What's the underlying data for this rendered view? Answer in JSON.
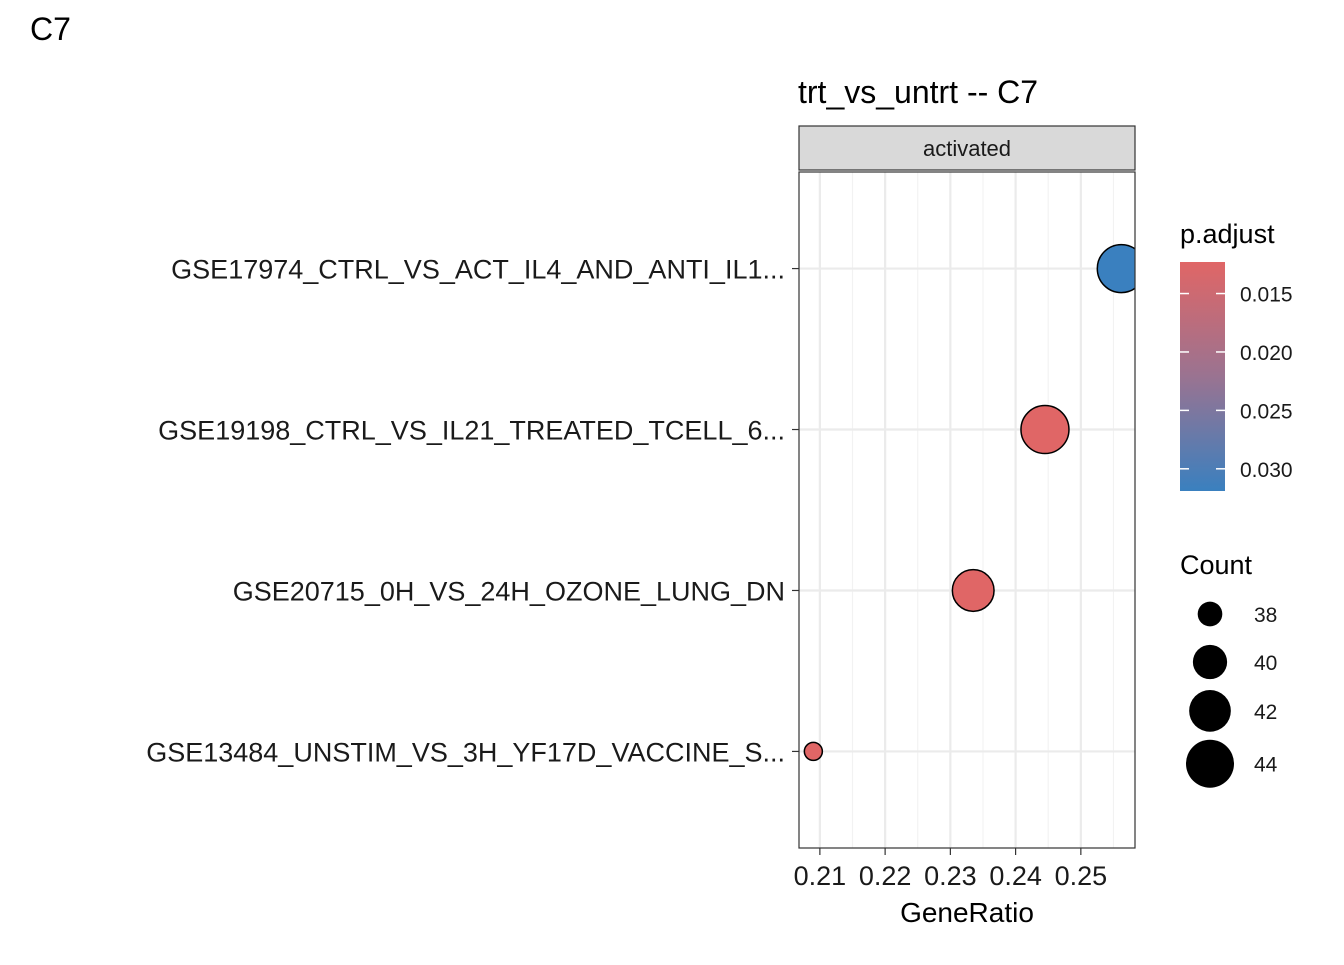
{
  "tag": "C7",
  "chart_data": {
    "type": "scatter",
    "title": "trt_vs_untrt -- C7",
    "facet": "activated",
    "xlabel": "GeneRatio",
    "ylabel": "",
    "xlim": [
      0.2068,
      0.2583
    ],
    "x_ticks": [
      {
        "value": 0.21,
        "label": "0.21"
      },
      {
        "value": 0.22,
        "label": "0.22"
      },
      {
        "value": 0.23,
        "label": "0.23"
      },
      {
        "value": 0.24,
        "label": "0.24"
      },
      {
        "value": 0.25,
        "label": "0.25"
      }
    ],
    "grid": true,
    "points": [
      {
        "label": "GSE17974_CTRL_VS_ACT_IL4_AND_ANTI_IL1...",
        "gene_ratio": 0.2562,
        "count": 44,
        "p_adjust": 0.0319
      },
      {
        "label": "GSE19198_CTRL_VS_IL21_TREATED_TCELL_6...",
        "gene_ratio": 0.2445,
        "count": 44,
        "p_adjust": 0.0123
      },
      {
        "label": "GSE20715_0H_VS_24H_OZONE_LUNG_DN",
        "gene_ratio": 0.2335,
        "count": 42,
        "p_adjust": 0.0123
      },
      {
        "label": "GSE13484_UNSTIM_VS_3H_YF17D_VACCINE_S...",
        "gene_ratio": 0.209,
        "count": 37,
        "p_adjust": 0.0123
      }
    ],
    "color_legend": {
      "title": "p.adjust",
      "low_color": "#E06666",
      "high_color": "#3A80BF",
      "range": [
        0.0123,
        0.0319
      ],
      "ticks": [
        {
          "value": 0.015,
          "label": "0.015"
        },
        {
          "value": 0.02,
          "label": "0.020"
        },
        {
          "value": 0.025,
          "label": "0.025"
        },
        {
          "value": 0.03,
          "label": "0.030"
        }
      ]
    },
    "size_legend": {
      "title": "Count",
      "range": [
        37,
        44
      ],
      "entries": [
        {
          "value": 38,
          "label": "38"
        },
        {
          "value": 40,
          "label": "40"
        },
        {
          "value": 42,
          "label": "42"
        },
        {
          "value": 44,
          "label": "44"
        }
      ]
    }
  }
}
